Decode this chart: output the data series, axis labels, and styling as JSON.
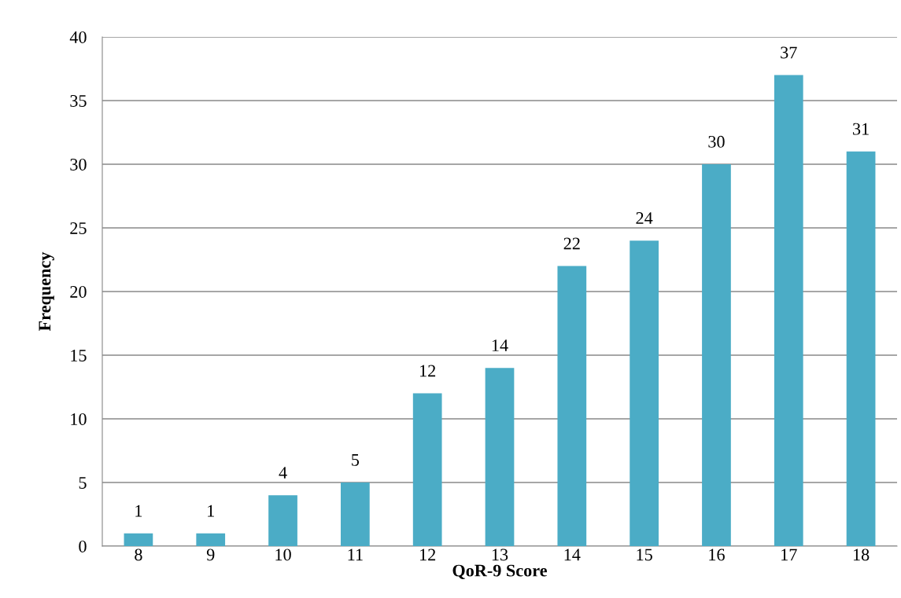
{
  "chart_data": {
    "type": "bar",
    "xlabel": "QoR-9 Score",
    "ylabel": "Frequency",
    "categories": [
      "8",
      "9",
      "10",
      "11",
      "12",
      "13",
      "14",
      "15",
      "16",
      "17",
      "18"
    ],
    "values": [
      1,
      1,
      4,
      5,
      12,
      14,
      22,
      24,
      30,
      37,
      31
    ],
    "color": "#4bacc6",
    "ylim": [
      0,
      40
    ],
    "yticks": [
      0,
      5,
      10,
      15,
      20,
      25,
      30,
      35,
      40
    ],
    "grid": "y",
    "data_labels": true,
    "legend": false
  }
}
